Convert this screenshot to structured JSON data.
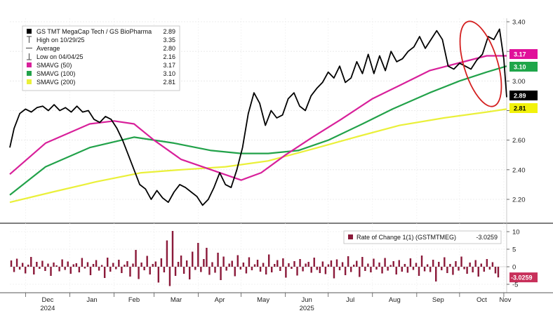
{
  "chart_data": [
    {
      "type": "line",
      "title": "",
      "xlabel": "",
      "ylabel": "",
      "ylim": [
        2.05,
        3.45
      ],
      "yticks": [
        "3.40",
        "3.20",
        "3.00",
        "2.80",
        "2.60",
        "2.40",
        "2.20"
      ],
      "x_ticks": [
        {
          "label": "Dec",
          "sublabel": "2024"
        },
        {
          "label": "Jan",
          "sublabel": ""
        },
        {
          "label": "Feb",
          "sublabel": ""
        },
        {
          "label": "Mar",
          "sublabel": ""
        },
        {
          "label": "Apr",
          "sublabel": ""
        },
        {
          "label": "May",
          "sublabel": ""
        },
        {
          "label": "Jun",
          "sublabel": "2025"
        },
        {
          "label": "Jul",
          "sublabel": ""
        },
        {
          "label": "Aug",
          "sublabel": ""
        },
        {
          "label": "Sep",
          "sublabel": ""
        },
        {
          "label": "Oct",
          "sublabel": ""
        },
        {
          "label": "Nov",
          "sublabel": ""
        }
      ],
      "x_range": [
        "2024-11-20",
        "2025-11-03"
      ],
      "legend": {
        "placement": "top-left",
        "items": [
          {
            "label": "GS TMT MegaCap Tech / GS BioPharma",
            "value": "2.89",
            "marker": "black-square"
          },
          {
            "label": "High on 10/29/25",
            "value": "3.35",
            "marker": "high-tick"
          },
          {
            "label": "Average",
            "value": "2.80",
            "marker": "dash"
          },
          {
            "label": "Low on 04/04/25",
            "value": "2.16",
            "marker": "low-tick"
          },
          {
            "label": "SMAVG (50)",
            "value": "3.17",
            "marker": "magenta-square"
          },
          {
            "label": "SMAVG (100)",
            "value": "3.10",
            "marker": "green-square"
          },
          {
            "label": "SMAVG (200)",
            "value": "2.81",
            "marker": "yellow-square"
          }
        ]
      },
      "right_tags": [
        {
          "value": "3.17",
          "bg": "#e0109a",
          "fg": "#ffffff"
        },
        {
          "value": "3.10",
          "bg": "#1fa64a",
          "fg": "#ffffff"
        },
        {
          "value": "2.89",
          "bg": "#000000",
          "fg": "#ffffff"
        },
        {
          "value": "2.81",
          "bg": "#f2f20a",
          "fg": "#000000"
        }
      ],
      "annotations": [
        {
          "type": "ellipse",
          "color": "#d42020",
          "around": "late-Oct high"
        }
      ],
      "series": [
        {
          "name": "GS TMT MegaCap Tech / GS BioPharma",
          "color": "#000000",
          "x": [
            "2024-11-20",
            "2024-11-23",
            "2024-11-27",
            "2024-12-01",
            "2024-12-05",
            "2024-12-09",
            "2024-12-13",
            "2024-12-17",
            "2024-12-21",
            "2024-12-25",
            "2024-12-29",
            "2025-01-02",
            "2025-01-06",
            "2025-01-10",
            "2025-01-14",
            "2025-01-18",
            "2025-01-22",
            "2025-01-26",
            "2025-01-30",
            "2025-02-03",
            "2025-02-07",
            "2025-02-11",
            "2025-02-15",
            "2025-02-19",
            "2025-02-23",
            "2025-02-27",
            "2025-03-03",
            "2025-03-07",
            "2025-03-11",
            "2025-03-15",
            "2025-03-19",
            "2025-03-23",
            "2025-03-27",
            "2025-03-31",
            "2025-04-04",
            "2025-04-08",
            "2025-04-12",
            "2025-04-16",
            "2025-04-20",
            "2025-04-24",
            "2025-04-28",
            "2025-05-02",
            "2025-05-06",
            "2025-05-10",
            "2025-05-14",
            "2025-05-18",
            "2025-05-22",
            "2025-05-26",
            "2025-05-30",
            "2025-06-03",
            "2025-06-07",
            "2025-06-11",
            "2025-06-15",
            "2025-06-19",
            "2025-06-23",
            "2025-06-27",
            "2025-07-01",
            "2025-07-05",
            "2025-07-09",
            "2025-07-13",
            "2025-07-17",
            "2025-07-21",
            "2025-07-25",
            "2025-07-29",
            "2025-08-02",
            "2025-08-06",
            "2025-08-10",
            "2025-08-14",
            "2025-08-18",
            "2025-08-22",
            "2025-08-26",
            "2025-08-30",
            "2025-09-03",
            "2025-09-07",
            "2025-09-11",
            "2025-09-15",
            "2025-09-19",
            "2025-09-23",
            "2025-09-27",
            "2025-10-01",
            "2025-10-05",
            "2025-10-09",
            "2025-10-13",
            "2025-10-17",
            "2025-10-21",
            "2025-10-25",
            "2025-10-29",
            "2025-11-01",
            "2025-11-03"
          ],
          "values": [
            2.55,
            2.68,
            2.78,
            2.81,
            2.79,
            2.82,
            2.83,
            2.8,
            2.84,
            2.8,
            2.82,
            2.79,
            2.83,
            2.79,
            2.8,
            2.74,
            2.72,
            2.76,
            2.74,
            2.68,
            2.6,
            2.5,
            2.4,
            2.3,
            2.27,
            2.2,
            2.26,
            2.21,
            2.18,
            2.25,
            2.3,
            2.28,
            2.25,
            2.22,
            2.16,
            2.2,
            2.28,
            2.38,
            2.3,
            2.28,
            2.4,
            2.55,
            2.78,
            2.92,
            2.85,
            2.7,
            2.8,
            2.75,
            2.77,
            2.88,
            2.92,
            2.83,
            2.8,
            2.9,
            2.95,
            2.99,
            3.06,
            3.02,
            3.1,
            2.99,
            3.02,
            3.13,
            3.05,
            3.18,
            3.05,
            3.17,
            3.07,
            3.2,
            3.13,
            3.15,
            3.2,
            3.23,
            3.3,
            3.22,
            3.28,
            3.34,
            3.28,
            3.1,
            3.08,
            3.12,
            3.1,
            3.08,
            3.14,
            3.18,
            3.3,
            3.28,
            3.35,
            3.15,
            2.89
          ]
        },
        {
          "name": "SMAVG (50)",
          "color": "#d8209a",
          "x": [
            "2024-11-20",
            "2024-12-15",
            "2025-01-15",
            "2025-02-01",
            "2025-02-15",
            "2025-03-01",
            "2025-03-20",
            "2025-04-10",
            "2025-05-01",
            "2025-05-15",
            "2025-06-01",
            "2025-06-20",
            "2025-07-10",
            "2025-08-01",
            "2025-08-20",
            "2025-09-10",
            "2025-09-30",
            "2025-10-20",
            "2025-11-03"
          ],
          "values": [
            2.37,
            2.58,
            2.71,
            2.73,
            2.71,
            2.6,
            2.47,
            2.4,
            2.33,
            2.38,
            2.5,
            2.62,
            2.74,
            2.88,
            2.97,
            3.07,
            3.12,
            3.17,
            3.17
          ]
        },
        {
          "name": "SMAVG (100)",
          "color": "#22a24a",
          "x": [
            "2024-11-20",
            "2024-12-15",
            "2025-01-15",
            "2025-02-15",
            "2025-03-15",
            "2025-04-10",
            "2025-05-01",
            "2025-05-20",
            "2025-06-10",
            "2025-07-01",
            "2025-07-25",
            "2025-08-15",
            "2025-09-10",
            "2025-10-01",
            "2025-10-20",
            "2025-11-03"
          ],
          "values": [
            2.23,
            2.42,
            2.55,
            2.62,
            2.58,
            2.53,
            2.51,
            2.51,
            2.53,
            2.6,
            2.71,
            2.81,
            2.92,
            3.0,
            3.06,
            3.1
          ]
        },
        {
          "name": "SMAVG (200)",
          "color": "#eaf03a",
          "x": [
            "2024-11-20",
            "2024-12-20",
            "2025-01-20",
            "2025-02-20",
            "2025-03-20",
            "2025-04-20",
            "2025-05-20",
            "2025-06-20",
            "2025-07-20",
            "2025-08-20",
            "2025-09-20",
            "2025-10-20",
            "2025-11-03"
          ],
          "values": [
            2.18,
            2.25,
            2.32,
            2.38,
            2.4,
            2.42,
            2.46,
            2.54,
            2.62,
            2.7,
            2.75,
            2.79,
            2.81
          ]
        }
      ]
    },
    {
      "type": "bar",
      "title": "",
      "ylim": [
        -6.5,
        12
      ],
      "yticks": [
        "10",
        "5",
        "0",
        "-5"
      ],
      "legend": {
        "placement": "top-right",
        "items": [
          {
            "label": "Rate of Change 1(1) (GSTMTMEG)",
            "value": "-3.0259",
            "color": "#8b1a3a"
          }
        ]
      },
      "right_tag": {
        "value": "-3.0259",
        "bg": "#c8305a",
        "fg": "#ffffff"
      },
      "series": [
        {
          "name": "Rate of Change 1(1) (GSTMTMEG)",
          "color": "#8b1a3a",
          "values": [
            1.8,
            -1.5,
            2.3,
            -0.8,
            1.1,
            -1.9,
            0.6,
            2.8,
            -2.2,
            1.4,
            -0.6,
            1.7,
            -1.2,
            0.9,
            -2.6,
            1.2,
            0.4,
            -1.3,
            2.1,
            -0.9,
            1.5,
            -2.0,
            0.7,
            1.0,
            -1.6,
            2.5,
            -0.5,
            1.3,
            -2.4,
            0.8,
            1.9,
            -1.1,
            0.5,
            -3.2,
            2.6,
            -1.4,
            1.1,
            -0.7,
            2.0,
            -1.8,
            0.6,
            1.6,
            -2.8,
            0.9,
            4.8,
            -3.5,
            1.2,
            -1.0,
            3.1,
            -2.2,
            0.8,
            1.5,
            -4.5,
            2.4,
            -1.6,
            7.5,
            -5.5,
            10.2,
            -2.6,
            1.4,
            3.2,
            -2.0,
            1.8,
            -3.6,
            4.3,
            -0.9,
            6.8,
            -1.5,
            2.2,
            5.4,
            -2.3,
            1.3,
            -1.7,
            4.0,
            -3.8,
            2.9,
            -1.1,
            0.9,
            1.7,
            -2.7,
            3.3,
            -0.8,
            1.2,
            -1.9,
            2.7,
            -1.0,
            0.7,
            2.0,
            -1.4,
            1.1,
            -2.2,
            3.5,
            -1.6,
            0.8,
            1.9,
            -1.2,
            2.4,
            -3.1,
            1.0,
            -0.6,
            1.6,
            -2.5,
            2.2,
            -1.3,
            0.9,
            1.4,
            -1.7,
            2.6,
            -0.9,
            -1.8,
            1.5,
            -2.1,
            0.7,
            1.8,
            -3.3,
            2.1,
            -1.0,
            1.3,
            -2.4,
            3.0,
            -1.5,
            0.6,
            1.7,
            -2.9,
            2.8,
            -1.2,
            0.9,
            -1.6,
            2.3,
            -0.8,
            1.2,
            -1.9,
            2.5,
            -1.1,
            0.5,
            1.6,
            -2.2,
            1.9,
            -1.4,
            0.8,
            -1.7,
            2.4,
            -0.9,
            1.1,
            -2.6,
            3.2,
            -1.3,
            0.7,
            -1.5,
            2.0,
            -4.2,
            1.4,
            -1.0,
            2.7,
            -1.8,
            0.8,
            -2.3,
            1.6,
            -1.1,
            2.9,
            -0.7,
            -2.0,
            1.2,
            -1.6,
            1.9,
            -2.8,
            0.9,
            -1.4,
            2.2,
            -0.8,
            1.3,
            -1.9,
            -3.0259
          ]
        }
      ]
    }
  ]
}
